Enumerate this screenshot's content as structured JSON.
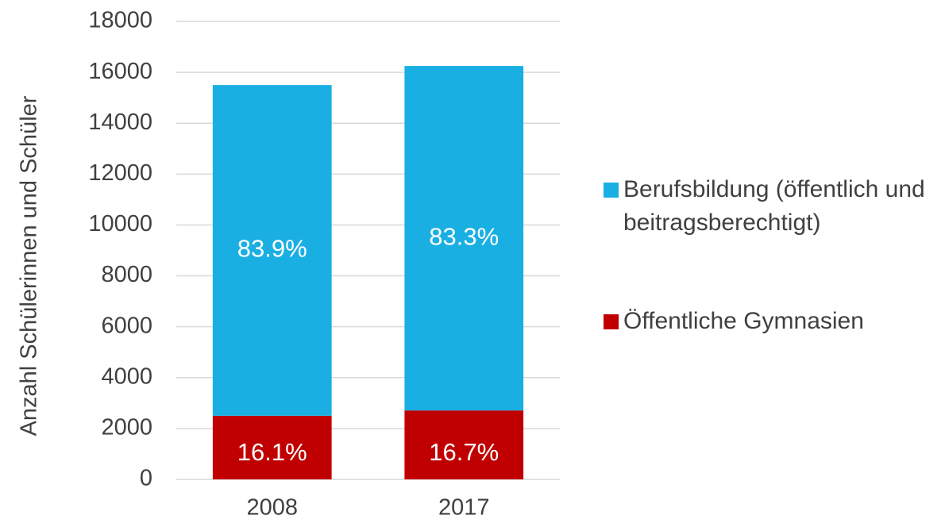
{
  "chart_data": {
    "type": "stacked_bar",
    "y_label": "Anzahl Schülerinnen und Schüler",
    "categories": [
      "2008",
      "2017"
    ],
    "series": [
      {
        "name": "Öffentliche Gymnasien",
        "color": "#c00000",
        "values": [
          2500,
          2710
        ],
        "labels": [
          "16.1%",
          "16.7%"
        ]
      },
      {
        "name": "Berufsbildung (öffentlich und beitragsberechtigt)",
        "color": "#1aafe3",
        "values": [
          13000,
          13540
        ],
        "labels": [
          "83.9%",
          "83.3%"
        ]
      }
    ],
    "ylim": [
      0,
      18000
    ],
    "yticks": [
      0,
      2000,
      4000,
      6000,
      8000,
      10000,
      12000,
      14000,
      16000,
      18000
    ],
    "grid": true,
    "legend": "right"
  }
}
